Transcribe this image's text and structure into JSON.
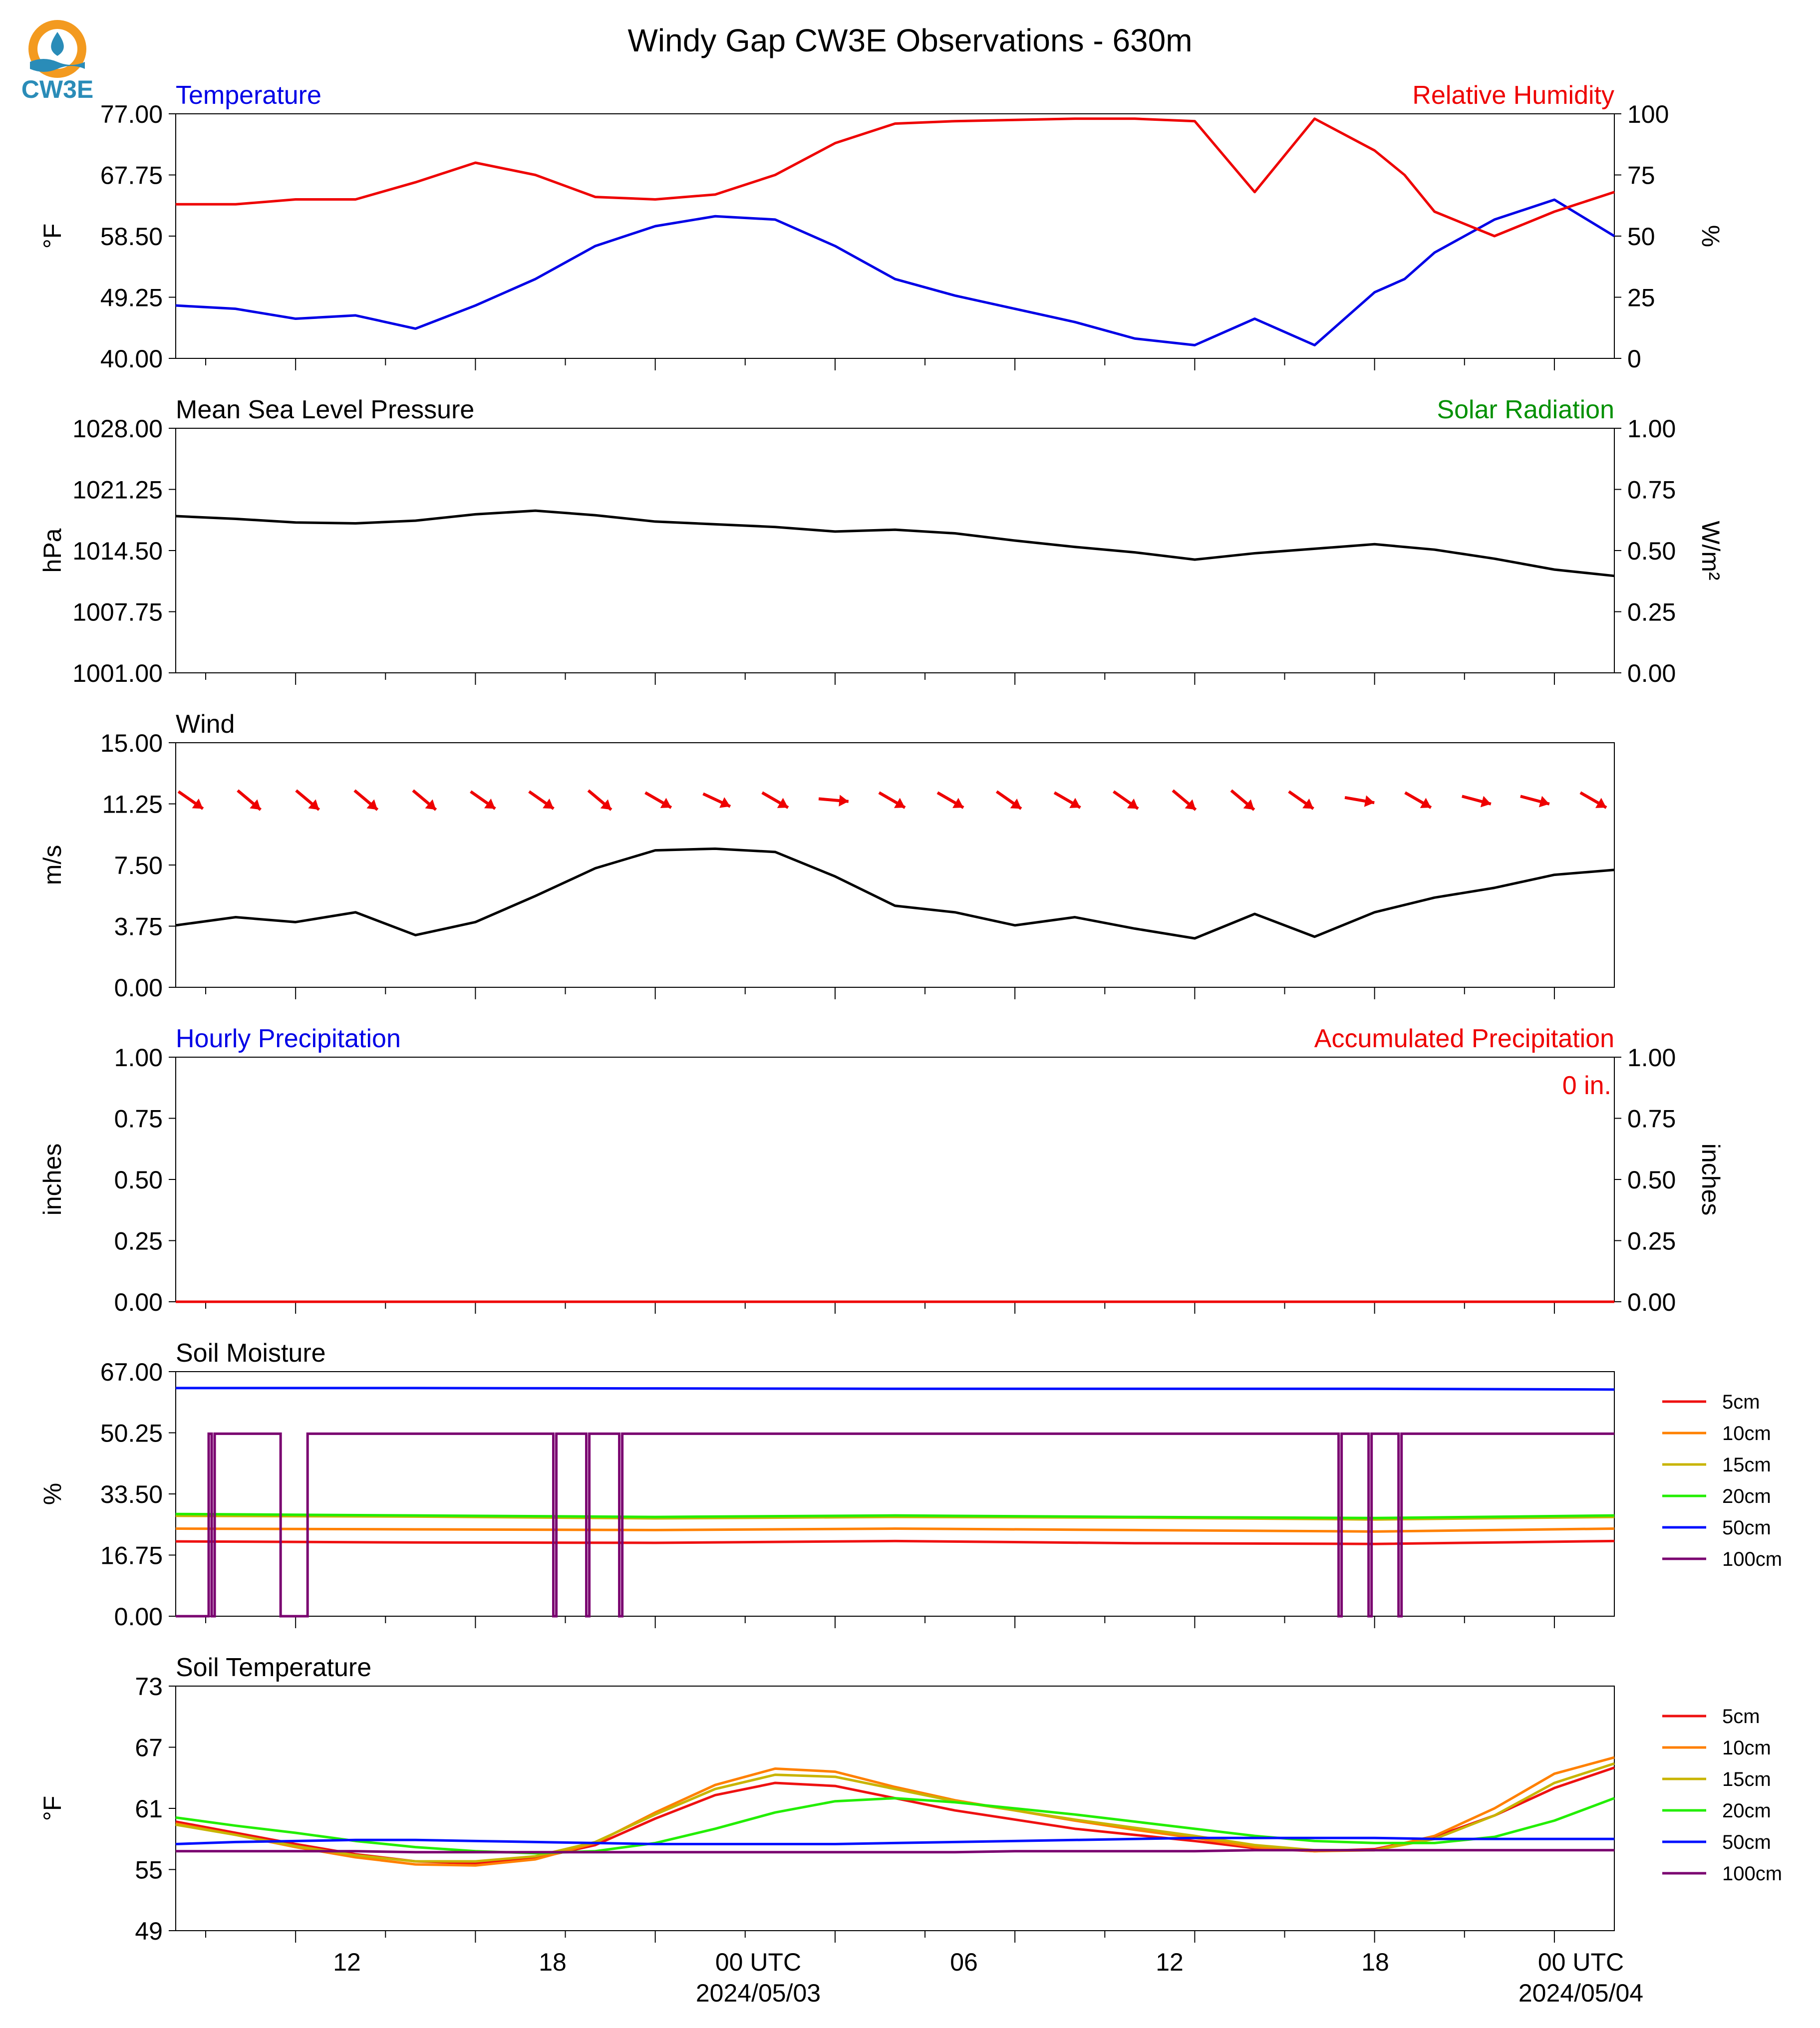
{
  "title": "Windy Gap CW3E Observations - 630m",
  "logo_text": "CW3E",
  "colors": {
    "blue": "#0000e6",
    "red": "#ee0000",
    "green": "#009000",
    "black": "#000000",
    "moisture_5": "#ee1111",
    "moisture_10": "#ff8000",
    "moisture_15": "#c8b400",
    "moisture_20": "#22ee00",
    "moisture_50": "#0010ff",
    "moisture_100": "#7a0070",
    "logo_orange": "#f39a1f",
    "logo_teal": "#2a8cb8"
  },
  "x_axis": {
    "tick_labels": [
      "12",
      "18",
      "00 UTC",
      "06",
      "12",
      "18",
      "00 UTC"
    ],
    "date_labels": [
      "2024/05/03",
      "2024/05/04"
    ]
  },
  "legend": {
    "labels": [
      "5cm",
      "10cm",
      "15cm",
      "20cm",
      "50cm",
      "100cm"
    ]
  },
  "chart_data": [
    {
      "type": "line",
      "left_title": "Temperature",
      "right_title": "Relative Humidity",
      "ylabel": "°F",
      "ylabel_right": "%",
      "ylim": [
        40,
        77
      ],
      "ylim_right": [
        0,
        100
      ],
      "yticks": [
        "77.00",
        "67.75",
        "58.50",
        "49.25",
        "40.00"
      ],
      "yticks_right": [
        "100",
        "75",
        "50",
        "25",
        "0"
      ],
      "x": [
        0,
        2,
        4,
        6,
        8,
        10,
        12,
        14,
        16,
        18,
        20,
        22,
        24,
        26,
        28,
        30,
        32,
        34,
        36,
        38,
        40,
        41,
        42,
        44,
        46,
        48
      ],
      "series": [
        {
          "name": "Temperature",
          "axis": "left",
          "values": [
            48,
            47.5,
            46,
            46.5,
            44.5,
            48,
            52,
            57,
            60,
            61.5,
            61,
            57,
            52,
            49.5,
            47.5,
            45.5,
            43,
            42,
            46,
            42,
            50,
            52,
            56,
            61,
            64,
            58.5
          ]
        },
        {
          "name": "Relative Humidity",
          "axis": "left_rh",
          "values": [
            63,
            63,
            65,
            65,
            72,
            80,
            75,
            66,
            65,
            67,
            75,
            88,
            96,
            97,
            97.5,
            98,
            98,
            97,
            68,
            98,
            85,
            75,
            60,
            50,
            60,
            68
          ]
        }
      ]
    },
    {
      "type": "line",
      "left_title": "Mean Sea Level Pressure",
      "right_title": "Solar Radiation",
      "ylabel": "hPa",
      "ylabel_right": "W/m²",
      "ylim": [
        1001,
        1028
      ],
      "ylim_right": [
        0,
        1
      ],
      "yticks": [
        "1028.00",
        "1021.25",
        "1014.50",
        "1007.75",
        "1001.00"
      ],
      "yticks_right": [
        "1.00",
        "0.75",
        "0.50",
        "0.25",
        "0.00"
      ],
      "x": [
        0,
        2,
        4,
        6,
        8,
        10,
        12,
        14,
        16,
        18,
        20,
        22,
        24,
        26,
        28,
        30,
        32,
        34,
        36,
        38,
        40,
        42,
        44,
        46,
        48
      ],
      "series": [
        {
          "name": "Mean Sea Level Pressure",
          "axis": "left",
          "values": [
            1018.3,
            1018,
            1017.6,
            1017.5,
            1017.8,
            1018.5,
            1018.9,
            1018.4,
            1017.7,
            1017.4,
            1017.1,
            1016.6,
            1016.8,
            1016.4,
            1015.6,
            1014.9,
            1014.3,
            1013.5,
            1014.2,
            1014.7,
            1015.2,
            1014.6,
            1013.6,
            1012.4,
            1011.7
          ]
        }
      ]
    },
    {
      "type": "line",
      "left_title": "Wind",
      "ylabel": "m/s",
      "ylim": [
        0,
        15
      ],
      "yticks": [
        "15.00",
        "11.25",
        "7.50",
        "3.75",
        "0.00"
      ],
      "x": [
        0,
        2,
        4,
        6,
        8,
        10,
        12,
        14,
        16,
        18,
        20,
        22,
        24,
        26,
        28,
        30,
        32,
        34,
        36,
        38,
        40,
        42,
        44,
        46,
        48
      ],
      "series": [
        {
          "name": "Wind",
          "axis": "left",
          "values": [
            3.8,
            4.3,
            4.0,
            4.6,
            3.2,
            4.0,
            5.6,
            7.3,
            8.4,
            8.5,
            8.3,
            6.8,
            5.0,
            4.6,
            3.8,
            4.3,
            3.6,
            3.0,
            4.5,
            3.1,
            4.6,
            5.5,
            6.1,
            6.9,
            7.2
          ]
        }
      ],
      "barb_directions_deg": [
        305,
        310,
        310,
        310,
        310,
        305,
        305,
        310,
        300,
        295,
        300,
        275,
        300,
        300,
        305,
        300,
        305,
        310,
        310,
        305,
        280,
        300,
        285,
        285,
        300
      ]
    },
    {
      "type": "line",
      "left_title": "Hourly Precipitation",
      "right_title": "Accumulated Precipitation",
      "annotation": "0 in.",
      "ylabel": "inches",
      "ylabel_right": "inches",
      "ylim": [
        0,
        1
      ],
      "ylim_right": [
        0,
        1
      ],
      "yticks": [
        "1.00",
        "0.75",
        "0.50",
        "0.25",
        "0.00"
      ],
      "yticks_right": [
        "1.00",
        "0.75",
        "0.50",
        "0.25",
        "0.00"
      ],
      "x": [
        0,
        48
      ],
      "series": [
        {
          "name": "Hourly Precipitation",
          "axis": "left",
          "values": [
            0,
            0
          ]
        },
        {
          "name": "Accumulated Precipitation",
          "axis": "left",
          "values": [
            0,
            0
          ]
        }
      ]
    },
    {
      "type": "line",
      "left_title": "Soil Moisture",
      "ylabel": "%",
      "ylim": [
        0,
        67
      ],
      "yticks": [
        "67.00",
        "50.25",
        "33.50",
        "16.75",
        "0.00"
      ],
      "x": [
        0,
        8,
        16,
        24,
        32,
        40,
        48
      ],
      "series": [
        {
          "name": "5cm",
          "values": [
            20.5,
            20.2,
            20.1,
            20.6,
            20.0,
            19.8,
            20.6
          ]
        },
        {
          "name": "10cm",
          "values": [
            24,
            23.8,
            23.6,
            24.0,
            23.6,
            23.2,
            24.0
          ]
        },
        {
          "name": "15cm",
          "values": [
            27.5,
            27.3,
            26.8,
            27.2,
            27.0,
            26.5,
            27.2
          ]
        },
        {
          "name": "20cm",
          "values": [
            28,
            27.6,
            27.2,
            27.6,
            27.2,
            26.9,
            27.6
          ]
        },
        {
          "name": "50cm",
          "values": [
            62.5,
            62.5,
            62.4,
            62.3,
            62.3,
            62.3,
            62.1
          ]
        }
      ],
      "step_series": {
        "name": "100cm",
        "high": 50,
        "low": 0,
        "segments": [
          [
            0,
            1.1,
            0
          ],
          [
            1.1,
            1.2,
            50
          ],
          [
            1.2,
            1.3,
            0
          ],
          [
            1.3,
            3.5,
            50
          ],
          [
            3.5,
            4.4,
            0
          ],
          [
            4.4,
            12.6,
            50
          ],
          [
            12.6,
            12.7,
            0
          ],
          [
            12.7,
            13.7,
            50
          ],
          [
            13.7,
            13.8,
            0
          ],
          [
            13.8,
            14.8,
            50
          ],
          [
            14.8,
            14.9,
            0
          ],
          [
            14.9,
            38.8,
            50
          ],
          [
            38.8,
            38.9,
            0
          ],
          [
            38.9,
            39.8,
            50
          ],
          [
            39.8,
            39.9,
            0
          ],
          [
            39.9,
            40.8,
            50
          ],
          [
            40.8,
            40.9,
            0
          ],
          [
            40.9,
            48,
            50
          ]
        ]
      }
    },
    {
      "type": "line",
      "left_title": "Soil Temperature",
      "ylabel": "°F",
      "ylim": [
        49,
        73
      ],
      "yticks": [
        "73",
        "67",
        "61",
        "55",
        "49"
      ],
      "x": [
        0,
        2,
        4,
        6,
        8,
        10,
        12,
        14,
        16,
        18,
        20,
        22,
        24,
        26,
        28,
        30,
        32,
        34,
        36,
        38,
        40,
        42,
        44,
        46,
        48
      ],
      "series": [
        {
          "name": "5cm",
          "values": [
            59.7,
            58.6,
            57.5,
            56.5,
            55.8,
            55.6,
            56.1,
            57.4,
            60.0,
            62.3,
            63.5,
            63.2,
            62.0,
            60.8,
            59.9,
            59.0,
            58.4,
            57.8,
            57.1,
            56.8,
            57.0,
            58.2,
            60.3,
            63.0,
            65.0
          ]
        },
        {
          "name": "10cm",
          "values": [
            59.5,
            58.4,
            57.2,
            56.2,
            55.5,
            55.4,
            56.0,
            57.6,
            60.6,
            63.3,
            64.9,
            64.6,
            63.1,
            61.8,
            60.8,
            59.8,
            58.9,
            58.1,
            57.2,
            56.8,
            56.9,
            58.3,
            61.0,
            64.4,
            66.0
          ]
        },
        {
          "name": "15cm",
          "values": [
            59.4,
            58.4,
            57.3,
            56.4,
            55.8,
            55.8,
            56.3,
            57.7,
            60.4,
            62.9,
            64.3,
            64.1,
            62.9,
            61.7,
            60.8,
            59.9,
            59.1,
            58.3,
            57.4,
            56.9,
            56.9,
            58.0,
            60.3,
            63.5,
            65.4
          ]
        },
        {
          "name": "20cm",
          "values": [
            60.1,
            59.3,
            58.6,
            57.8,
            57.2,
            56.8,
            56.6,
            56.8,
            57.6,
            59.0,
            60.6,
            61.7,
            62.0,
            61.6,
            61.0,
            60.4,
            59.7,
            59.0,
            58.3,
            57.8,
            57.6,
            57.6,
            58.2,
            59.8,
            62.0
          ]
        },
        {
          "name": "50cm",
          "values": [
            57.5,
            57.7,
            57.8,
            57.9,
            57.9,
            57.8,
            57.7,
            57.6,
            57.5,
            57.5,
            57.5,
            57.5,
            57.6,
            57.7,
            57.8,
            57.9,
            58.0,
            58.1,
            58.1,
            58.1,
            58.1,
            58.0,
            58.0,
            58.0,
            58.0
          ]
        },
        {
          "name": "100cm",
          "values": [
            56.8,
            56.8,
            56.8,
            56.8,
            56.7,
            56.7,
            56.7,
            56.7,
            56.7,
            56.7,
            56.7,
            56.7,
            56.7,
            56.7,
            56.8,
            56.8,
            56.8,
            56.8,
            56.9,
            56.9,
            56.9,
            56.9,
            56.9,
            56.9,
            56.9
          ]
        }
      ]
    }
  ]
}
